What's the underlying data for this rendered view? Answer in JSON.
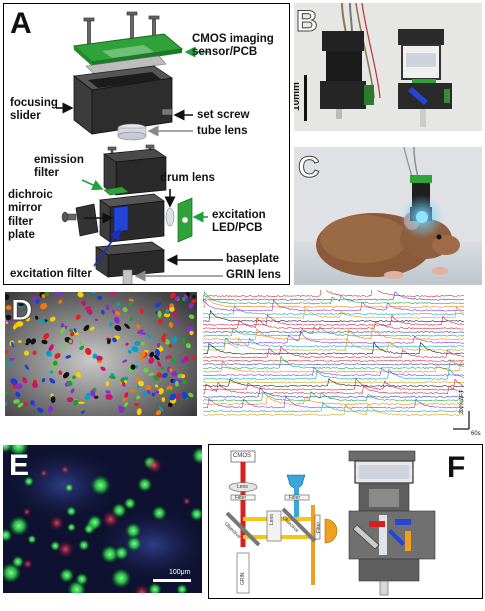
{
  "panel_a": {
    "letter": "A",
    "labels": {
      "cmos": "CMOS imaging\nsensor/PCB",
      "focusing": "focusing\nslider",
      "set_screw": "set screw",
      "tube_lens": "tube lens",
      "emission_filter": "emission\nfilter",
      "drum_lens": "drum lens",
      "dichroic": "dichroic\nmirror",
      "filter_plate": "filter\nplate",
      "excitation_led": "excitation\nLED/PCB",
      "baseplate": "baseplate",
      "grin": "GRIN lens",
      "excitation_filter": "excitation filter"
    }
  },
  "panel_b": {
    "letter": "B",
    "scale_label": "10mm"
  },
  "panel_c": {
    "letter": "C"
  },
  "panel_d": {
    "letter": "D",
    "scale_y": "200% ΔF/F",
    "scale_x": "60s"
  },
  "panel_e": {
    "letter": "E",
    "scale_label": "100μm"
  },
  "panel_f": {
    "letter": "F",
    "labels": {
      "cmos": "CMOS",
      "lens": "Lens",
      "filter": "Filter",
      "objective": "Objective",
      "grin": "GRIN",
      "lens_v": "Lens",
      "filter_v": "Filter"
    }
  },
  "colors": {
    "pcb_green": "#2fa33a",
    "arrow_green": "#1ea23a",
    "arrow_blue": "#1a2fbf",
    "excitation_blue": "#2545d8",
    "emission_red": "#d62020",
    "light_orange": "#f0a020",
    "beam_yellow": "#f5c518",
    "led_cyan": "#3aa7d8"
  }
}
